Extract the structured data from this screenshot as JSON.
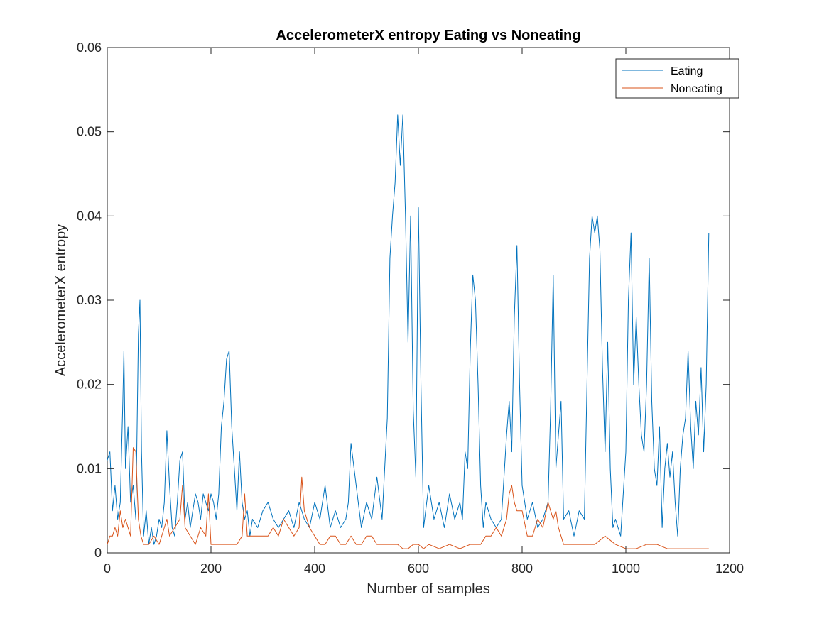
{
  "chart_data": {
    "type": "line",
    "title": "AccelerometerX entropy Eating vs Noneating",
    "xlabel": "Number of samples",
    "ylabel": "AccelerometerX entropy",
    "xlim": [
      0,
      1200
    ],
    "ylim": [
      0,
      0.06
    ],
    "xticks": [
      0,
      200,
      400,
      600,
      800,
      1000,
      1200
    ],
    "yticks": [
      0,
      0.01,
      0.02,
      0.03,
      0.04,
      0.05,
      0.06
    ],
    "xtick_labels": [
      "0",
      "200",
      "400",
      "600",
      "800",
      "1000",
      "1200"
    ],
    "ytick_labels": [
      "0",
      "0.01",
      "0.02",
      "0.03",
      "0.04",
      "0.05",
      "0.06"
    ],
    "grid": false,
    "legend_position": "top-right",
    "series": [
      {
        "name": "Eating",
        "color": "#0072BD",
        "x": [
          0,
          5,
          10,
          15,
          20,
          25,
          30,
          32,
          35,
          40,
          45,
          50,
          55,
          60,
          63,
          66,
          70,
          75,
          80,
          85,
          90,
          95,
          100,
          105,
          110,
          115,
          120,
          125,
          130,
          135,
          140,
          145,
          150,
          155,
          160,
          165,
          170,
          175,
          180,
          185,
          190,
          195,
          200,
          205,
          210,
          215,
          220,
          225,
          230,
          235,
          240,
          245,
          250,
          255,
          260,
          265,
          270,
          275,
          280,
          290,
          300,
          310,
          320,
          330,
          340,
          350,
          360,
          370,
          380,
          390,
          400,
          410,
          420,
          430,
          440,
          450,
          460,
          465,
          470,
          480,
          490,
          500,
          510,
          520,
          530,
          535,
          540,
          545,
          550,
          555,
          560,
          565,
          570,
          575,
          580,
          585,
          590,
          595,
          600,
          605,
          610,
          620,
          630,
          640,
          650,
          660,
          670,
          680,
          685,
          690,
          695,
          700,
          705,
          710,
          715,
          720,
          725,
          730,
          740,
          750,
          760,
          770,
          775,
          780,
          785,
          790,
          795,
          800,
          810,
          820,
          830,
          840,
          850,
          855,
          860,
          865,
          870,
          875,
          880,
          890,
          900,
          910,
          920,
          925,
          930,
          935,
          940,
          945,
          950,
          955,
          960,
          965,
          970,
          975,
          980,
          990,
          1000,
          1005,
          1010,
          1015,
          1020,
          1025,
          1030,
          1035,
          1040,
          1045,
          1050,
          1055,
          1060,
          1065,
          1070,
          1075,
          1080,
          1085,
          1090,
          1095,
          1100,
          1105,
          1110,
          1115,
          1120,
          1125,
          1130,
          1135,
          1140,
          1145,
          1150,
          1155,
          1160
        ],
        "y": [
          0.011,
          0.012,
          0.005,
          0.008,
          0.004,
          0.006,
          0.018,
          0.024,
          0.01,
          0.015,
          0.006,
          0.008,
          0.004,
          0.026,
          0.03,
          0.012,
          0.002,
          0.005,
          0.001,
          0.003,
          0.001,
          0.002,
          0.004,
          0.003,
          0.006,
          0.0145,
          0.008,
          0.003,
          0.002,
          0.006,
          0.011,
          0.012,
          0.004,
          0.006,
          0.003,
          0.005,
          0.007,
          0.006,
          0.004,
          0.007,
          0.006,
          0.005,
          0.007,
          0.006,
          0.004,
          0.007,
          0.015,
          0.018,
          0.023,
          0.024,
          0.015,
          0.01,
          0.005,
          0.012,
          0.006,
          0.004,
          0.005,
          0.002,
          0.004,
          0.003,
          0.005,
          0.006,
          0.004,
          0.003,
          0.004,
          0.005,
          0.003,
          0.006,
          0.004,
          0.003,
          0.006,
          0.004,
          0.008,
          0.003,
          0.005,
          0.003,
          0.004,
          0.006,
          0.013,
          0.008,
          0.003,
          0.006,
          0.004,
          0.009,
          0.004,
          0.01,
          0.016,
          0.035,
          0.04,
          0.044,
          0.052,
          0.046,
          0.052,
          0.04,
          0.025,
          0.04,
          0.017,
          0.009,
          0.041,
          0.02,
          0.003,
          0.008,
          0.004,
          0.006,
          0.003,
          0.007,
          0.004,
          0.006,
          0.004,
          0.012,
          0.01,
          0.024,
          0.033,
          0.03,
          0.02,
          0.008,
          0.003,
          0.006,
          0.004,
          0.003,
          0.004,
          0.014,
          0.018,
          0.012,
          0.028,
          0.0365,
          0.02,
          0.008,
          0.004,
          0.006,
          0.003,
          0.004,
          0.006,
          0.017,
          0.033,
          0.01,
          0.014,
          0.018,
          0.004,
          0.005,
          0.002,
          0.005,
          0.004,
          0.02,
          0.035,
          0.04,
          0.038,
          0.04,
          0.036,
          0.022,
          0.012,
          0.025,
          0.01,
          0.003,
          0.004,
          0.002,
          0.012,
          0.03,
          0.038,
          0.02,
          0.028,
          0.02,
          0.014,
          0.012,
          0.02,
          0.035,
          0.018,
          0.01,
          0.008,
          0.015,
          0.003,
          0.01,
          0.013,
          0.009,
          0.012,
          0.006,
          0.002,
          0.01,
          0.014,
          0.016,
          0.024,
          0.015,
          0.01,
          0.018,
          0.014,
          0.022,
          0.012,
          0.02,
          0.038
        ]
      },
      {
        "name": "Noneating",
        "color": "#D95319",
        "x": [
          0,
          5,
          10,
          15,
          20,
          25,
          30,
          35,
          40,
          45,
          50,
          55,
          60,
          65,
          70,
          80,
          90,
          100,
          110,
          115,
          120,
          130,
          140,
          145,
          150,
          160,
          170,
          180,
          190,
          195,
          200,
          210,
          220,
          230,
          240,
          250,
          260,
          265,
          270,
          280,
          290,
          300,
          310,
          320,
          330,
          340,
          350,
          360,
          370,
          375,
          380,
          390,
          400,
          410,
          420,
          430,
          440,
          450,
          460,
          470,
          480,
          490,
          500,
          510,
          520,
          530,
          540,
          550,
          560,
          570,
          580,
          590,
          600,
          610,
          620,
          640,
          660,
          680,
          700,
          720,
          730,
          740,
          750,
          760,
          770,
          775,
          780,
          785,
          790,
          800,
          810,
          820,
          830,
          840,
          850,
          855,
          860,
          865,
          870,
          880,
          890,
          900,
          920,
          940,
          960,
          980,
          1000,
          1020,
          1040,
          1060,
          1080,
          1100,
          1120,
          1140,
          1160
        ],
        "y": [
          0.001,
          0.002,
          0.002,
          0.003,
          0.002,
          0.005,
          0.003,
          0.004,
          0.003,
          0.002,
          0.0125,
          0.012,
          0.004,
          0.002,
          0.001,
          0.001,
          0.002,
          0.001,
          0.003,
          0.004,
          0.002,
          0.003,
          0.004,
          0.008,
          0.003,
          0.002,
          0.001,
          0.003,
          0.002,
          0.007,
          0.001,
          0.001,
          0.001,
          0.001,
          0.001,
          0.001,
          0.002,
          0.007,
          0.002,
          0.002,
          0.002,
          0.002,
          0.002,
          0.003,
          0.002,
          0.004,
          0.003,
          0.002,
          0.003,
          0.009,
          0.005,
          0.003,
          0.002,
          0.001,
          0.001,
          0.002,
          0.002,
          0.001,
          0.001,
          0.002,
          0.001,
          0.001,
          0.002,
          0.002,
          0.001,
          0.001,
          0.001,
          0.001,
          0.001,
          0.0005,
          0.0005,
          0.001,
          0.001,
          0.0005,
          0.001,
          0.0005,
          0.001,
          0.0005,
          0.001,
          0.001,
          0.002,
          0.002,
          0.003,
          0.002,
          0.004,
          0.007,
          0.008,
          0.006,
          0.005,
          0.005,
          0.002,
          0.002,
          0.004,
          0.003,
          0.006,
          0.005,
          0.004,
          0.005,
          0.003,
          0.001,
          0.001,
          0.001,
          0.001,
          0.001,
          0.002,
          0.001,
          0.0005,
          0.0005,
          0.001,
          0.001,
          0.0005,
          0.0005,
          0.0005,
          0.0005,
          0.0005
        ]
      }
    ]
  }
}
